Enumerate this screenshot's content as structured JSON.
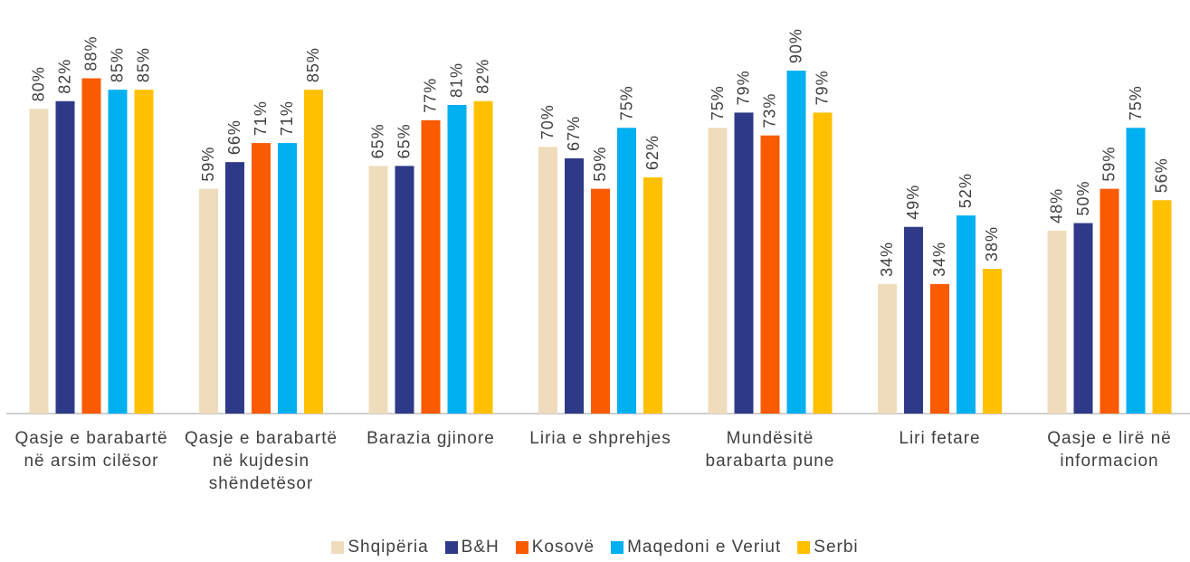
{
  "chart_data": {
    "type": "bar",
    "categories": [
      "Qasje e barabartë në arsim cilësor",
      "Qasje e barabartë në kujdesin shëndetësor",
      "Barazia gjinore",
      "Liria e shprehjes",
      "Mundësitë barabarta pune",
      "Liri fetare",
      "Qasje e lirë në informacion"
    ],
    "series": [
      {
        "name": "Shqipëria",
        "color": "#efdcbc",
        "values": [
          80,
          59,
          65,
          70,
          75,
          34,
          48
        ],
        "value_labels": [
          "80%",
          "59%",
          "65%",
          "70%",
          "75%",
          "34%",
          "48%"
        ]
      },
      {
        "name": "B&H",
        "color": "#2e3a87",
        "values": [
          82,
          66,
          65,
          67,
          79,
          49,
          50
        ],
        "value_labels": [
          "82%",
          "66%",
          "65%",
          "67%",
          "79%",
          "49%",
          "50%"
        ]
      },
      {
        "name": "Kosovë",
        "color": "#fa5a00",
        "values": [
          88,
          71,
          77,
          59,
          73,
          34,
          59
        ],
        "value_labels": [
          "88%",
          "71%",
          "77%",
          "59%",
          "73%",
          "34%",
          "59%"
        ]
      },
      {
        "name": "Maqedoni e Veriut",
        "color": "#00b0f0",
        "values": [
          85,
          71,
          81,
          75,
          90,
          52,
          75
        ],
        "value_labels": [
          "85%",
          "71%",
          "81%",
          "75%",
          "90%",
          "52%",
          "75%"
        ]
      },
      {
        "name": "Serbi",
        "color": "#ffc000",
        "values": [
          85,
          85,
          82,
          62,
          79,
          38,
          56
        ],
        "value_labels": [
          "85%",
          "85%",
          "82%",
          "62%",
          "79%",
          "38%",
          "56%"
        ]
      }
    ],
    "ylim": [
      0,
      100
    ],
    "legend": "bottom"
  }
}
